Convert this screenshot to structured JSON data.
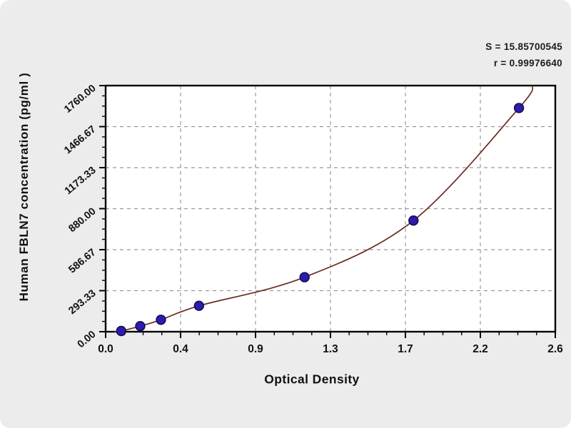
{
  "stats": {
    "s_label": "S = 15.85700545",
    "r_label": "r = 0.99976640"
  },
  "chart_data": {
    "type": "scatter",
    "title": "",
    "xlabel": "Optical Density",
    "ylabel": "Human FBLN7 concentration (pg/ml )",
    "xlim": [
      0,
      2.6
    ],
    "ylim": [
      0,
      1760
    ],
    "grid": "dashed, both axes at major ticks",
    "legend": "none",
    "annotations": [
      "S = 15.85700545",
      "r = 0.99976640"
    ],
    "x_ticks": {
      "values": [
        0,
        0.4333,
        0.8667,
        1.3,
        1.7333,
        2.1667,
        2.6
      ],
      "labels": [
        "0.0",
        "0.4",
        "0.9",
        "1.3",
        "1.7",
        "2.2",
        "2.6"
      ],
      "minor_subdivisions": 4
    },
    "y_ticks": {
      "values": [
        0,
        293.33,
        586.67,
        880,
        1173.33,
        1466.67,
        1760
      ],
      "labels": [
        "0.00",
        "293.33",
        "586.67",
        "880.00",
        "1173.33",
        "1466.67",
        "1760.00"
      ],
      "minor_subdivisions": 4
    },
    "series": [
      {
        "name": "standard-points",
        "style": "scatter",
        "marker": "circle",
        "points": [
          {
            "od": 0.09,
            "conc": 5
          },
          {
            "od": 0.2,
            "conc": 40
          },
          {
            "od": 0.32,
            "conc": 85
          },
          {
            "od": 0.54,
            "conc": 185
          },
          {
            "od": 1.15,
            "conc": 390
          },
          {
            "od": 1.78,
            "conc": 795
          },
          {
            "od": 2.39,
            "conc": 1600
          }
        ]
      },
      {
        "name": "fitted-curve",
        "style": "smooth-line",
        "extends_from": {
          "od": 0.05,
          "conc": 0
        },
        "extends_to": {
          "od": 2.47,
          "conc": 1760
        }
      }
    ],
    "colors": {
      "background": "#ececec",
      "plot_background": "#ffffff",
      "frame": "#000000",
      "grid": "#999999",
      "marker_fill": "#2b1cab",
      "marker_stroke": "#170b55",
      "curve": "#6e2b22",
      "text": "#111111"
    }
  }
}
